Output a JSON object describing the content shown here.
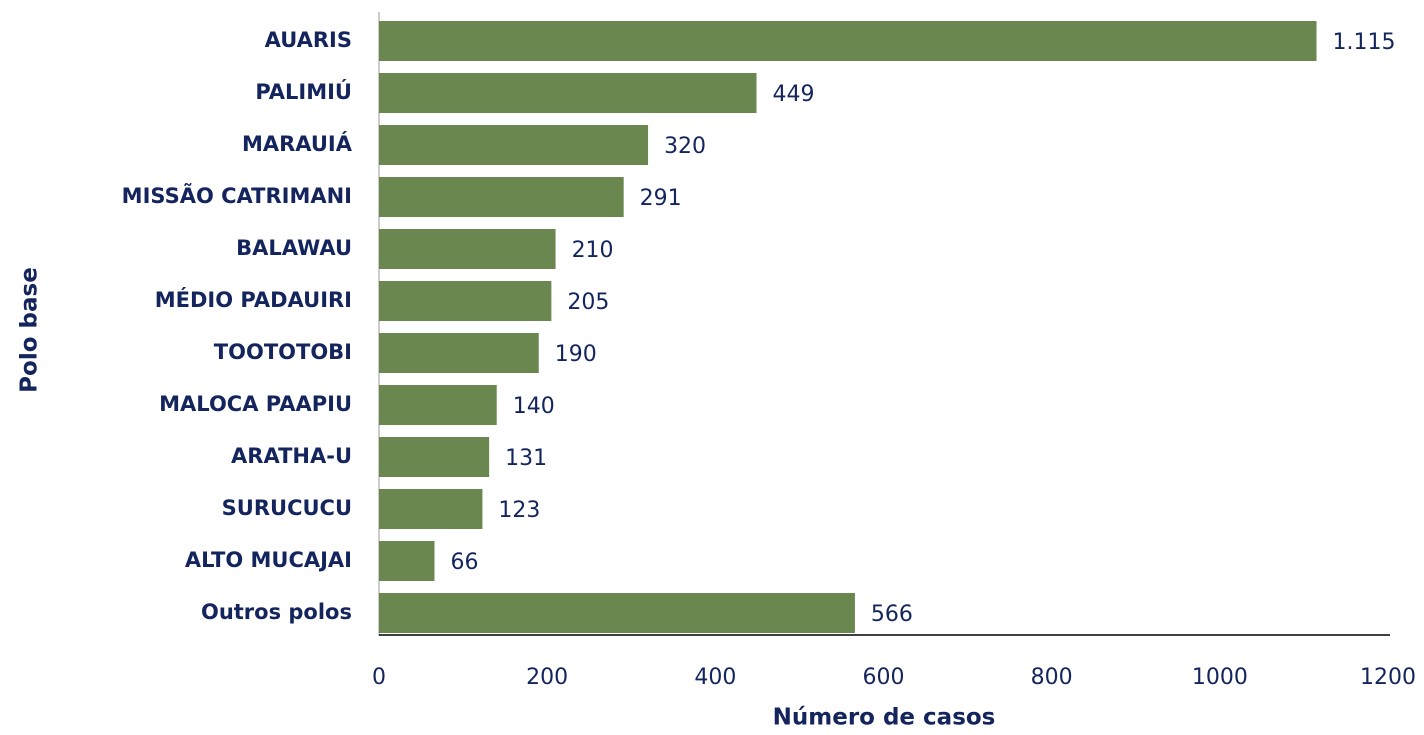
{
  "chart_data": {
    "type": "bar",
    "orientation": "horizontal",
    "categories": [
      "AUARIS",
      "PALIMIÚ",
      "MARAUIÁ",
      "MISSÃO CATRIMANI",
      "BALAWAU",
      "MÉDIO PADAUIRI",
      "TOOTOTOBI",
      "MALOCA PAAPIU",
      "ARATHA-U",
      "SURUCUCU",
      "ALTO MUCAJAI",
      "Outros polos"
    ],
    "values": [
      1115,
      449,
      320,
      291,
      210,
      205,
      190,
      140,
      131,
      123,
      66,
      566
    ],
    "value_labels": [
      "1.115",
      "449",
      "320",
      "291",
      "210",
      "205",
      "190",
      "140",
      "131",
      "123",
      "66",
      "566"
    ],
    "color": "#6a8750",
    "xlim": [
      0,
      1200
    ],
    "xticks": [
      0,
      200,
      400,
      600,
      800,
      1000,
      1200
    ],
    "xlabel": "Número de casos",
    "ylabel": "Polo base",
    "grid": false
  }
}
